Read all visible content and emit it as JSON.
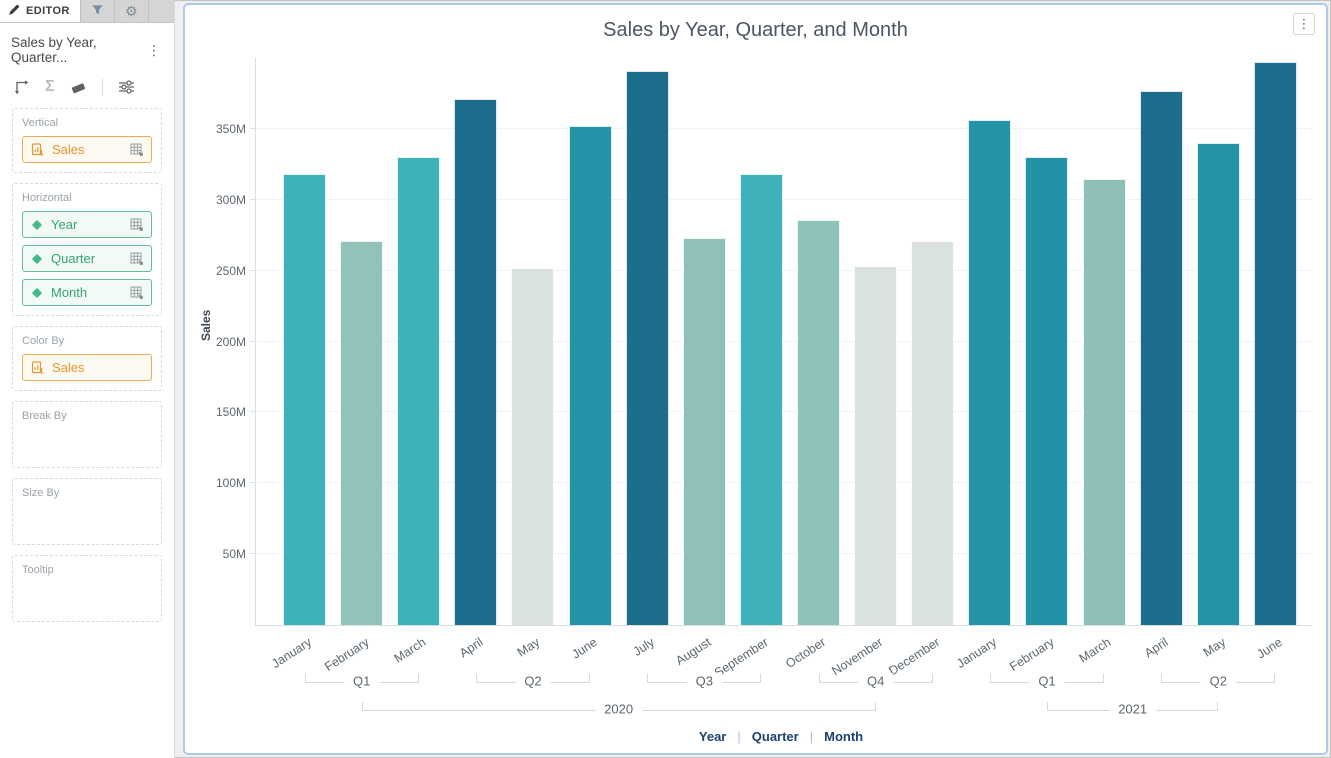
{
  "editor": {
    "tabs": [
      {
        "label": "EDITOR",
        "icon": "pencil-icon",
        "active": true
      },
      {
        "label": "",
        "icon": "filter-icon",
        "active": false
      },
      {
        "label": "",
        "icon": "gear-icon",
        "active": false
      }
    ],
    "title": "Sales by Year, Quarter...",
    "toolbar_icons": [
      "swap-axes-icon",
      "sigma-icon",
      "eraser-icon",
      "sliders-icon"
    ],
    "sections": [
      {
        "label": "Vertical",
        "fields": [
          {
            "label": "Sales",
            "kind": "measure",
            "grid_icon": true
          }
        ]
      },
      {
        "label": "Horizontal",
        "fields": [
          {
            "label": "Year",
            "kind": "attribute",
            "grid_icon": true
          },
          {
            "label": "Quarter",
            "kind": "attribute",
            "grid_icon": true
          },
          {
            "label": "Month",
            "kind": "attribute",
            "grid_icon": true
          }
        ]
      },
      {
        "label": "Color By",
        "fields": [
          {
            "label": "Sales",
            "kind": "measure",
            "grid_icon": false
          }
        ]
      },
      {
        "label": "Break By",
        "fields": []
      },
      {
        "label": "Size By",
        "fields": []
      },
      {
        "label": "Tooltip",
        "fields": []
      }
    ],
    "accent_colors": {
      "measure": "#E8932F",
      "attribute": "#35A279"
    }
  },
  "chart": {
    "breadcrumb": [
      "Year",
      "Quarter",
      "Month"
    ],
    "kebab_icon": "kebab-menu-icon"
  },
  "chart_data": {
    "type": "bar",
    "title": "Sales by Year, Quarter, and Month",
    "xlabel": "",
    "ylabel": "Sales",
    "ylim_millions": [
      0,
      400
    ],
    "y_ticks_millions": [
      50,
      100,
      150,
      200,
      250,
      300,
      350
    ],
    "y_tick_labels": [
      "50M",
      "100M",
      "150M",
      "200M",
      "250M",
      "300M",
      "350M"
    ],
    "grid": "horizontal-only",
    "legend": "none",
    "color_by": "Sales",
    "points": [
      {
        "month": "January",
        "quarter": "Q1",
        "year": "2020",
        "value_millions": 318,
        "color": "#3DB2BA"
      },
      {
        "month": "February",
        "quarter": "Q1",
        "year": "2020",
        "value_millions": 271,
        "color": "#93C2BB"
      },
      {
        "month": "March",
        "quarter": "Q1",
        "year": "2020",
        "value_millions": 330,
        "color": "#3DB2B8"
      },
      {
        "month": "April",
        "quarter": "Q2",
        "year": "2020",
        "value_millions": 371,
        "color": "#1D6E8C"
      },
      {
        "month": "May",
        "quarter": "Q2",
        "year": "2020",
        "value_millions": 252,
        "color": "#D9E2DE"
      },
      {
        "month": "June",
        "quarter": "Q2",
        "year": "2020",
        "value_millions": 352,
        "color": "#2493A8"
      },
      {
        "month": "July",
        "quarter": "Q3",
        "year": "2020",
        "value_millions": 391,
        "color": "#1D6E8C"
      },
      {
        "month": "August",
        "quarter": "Q3",
        "year": "2020",
        "value_millions": 273,
        "color": "#8FC0BA"
      },
      {
        "month": "September",
        "quarter": "Q3",
        "year": "2020",
        "value_millions": 318,
        "color": "#3FB1B8"
      },
      {
        "month": "October",
        "quarter": "Q4",
        "year": "2020",
        "value_millions": 286,
        "color": "#8EC3BA"
      },
      {
        "month": "November",
        "quarter": "Q4",
        "year": "2020",
        "value_millions": 253,
        "color": "#D9E2DE"
      },
      {
        "month": "December",
        "quarter": "Q4",
        "year": "2020",
        "value_millions": 271,
        "color": "#D9E2DE"
      },
      {
        "month": "January",
        "quarter": "Q1",
        "year": "2021",
        "value_millions": 356,
        "color": "#2694A7"
      },
      {
        "month": "February",
        "quarter": "Q1",
        "year": "2021",
        "value_millions": 330,
        "color": "#2391A6"
      },
      {
        "month": "March",
        "quarter": "Q1",
        "year": "2021",
        "value_millions": 315,
        "color": "#8FC0B8"
      },
      {
        "month": "April",
        "quarter": "Q2",
        "year": "2021",
        "value_millions": 377,
        "color": "#1D6E8C"
      },
      {
        "month": "May",
        "quarter": "Q2",
        "year": "2021",
        "value_millions": 340,
        "color": "#2593A6"
      },
      {
        "month": "June",
        "quarter": "Q2",
        "year": "2021",
        "value_millions": 397,
        "color": "#1D6E8C"
      }
    ]
  }
}
